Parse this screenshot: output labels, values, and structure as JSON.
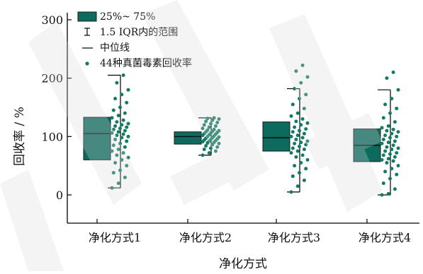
{
  "colors": {
    "box_fill": "#0d6b5e",
    "box_stroke": "#1a1a1a",
    "point": "#137a64",
    "axis": "#000000",
    "watermark": "#d9d9d9"
  },
  "chart_data": {
    "type": "box",
    "xlabel": "净化方式",
    "ylabel": "回收率 / %",
    "ylim": [
      -20,
      300
    ],
    "yticks": [
      0,
      100,
      200,
      300
    ],
    "categories": [
      "净化方式1",
      "净化方式2",
      "净化方式3",
      "净化方式4"
    ],
    "legend": {
      "position": "top-left",
      "entries": [
        {
          "kind": "box",
          "label": "25%~ 75%"
        },
        {
          "kind": "whisker",
          "label": "1.5 IQR内的范围"
        },
        {
          "kind": "median",
          "label": "中位线"
        },
        {
          "kind": "point",
          "label": "44种真菌毒素回收率"
        }
      ]
    },
    "boxes": [
      {
        "q1": 60,
        "median": 105,
        "q3": 133,
        "whisker_low": 12,
        "whisker_high": 205
      },
      {
        "q1": 87,
        "median": 100,
        "q3": 108,
        "whisker_low": 68,
        "whisker_high": 132
      },
      {
        "q1": 75,
        "median": 98,
        "q3": 125,
        "whisker_low": 5,
        "whisker_high": 182
      },
      {
        "q1": 57,
        "median": 85,
        "q3": 113,
        "whisker_low": 0,
        "whisker_high": 180
      }
    ],
    "points": [
      [
        12,
        20,
        30,
        38,
        42,
        50,
        55,
        60,
        64,
        68,
        72,
        75,
        78,
        82,
        85,
        88,
        92,
        95,
        98,
        100,
        102,
        104,
        106,
        108,
        110,
        112,
        114,
        116,
        118,
        120,
        122,
        125,
        128,
        132,
        136,
        140,
        145,
        150,
        158,
        165,
        172,
        180,
        192,
        205
      ],
      [
        68,
        72,
        75,
        78,
        80,
        82,
        84,
        86,
        88,
        89,
        90,
        91,
        92,
        93,
        94,
        95,
        96,
        97,
        98,
        99,
        100,
        101,
        102,
        103,
        104,
        105,
        106,
        107,
        108,
        109,
        110,
        111,
        112,
        114,
        116,
        118,
        120,
        122,
        124,
        126,
        128,
        130,
        131,
        132
      ],
      [
        5,
        15,
        25,
        32,
        38,
        45,
        50,
        55,
        60,
        65,
        68,
        72,
        75,
        78,
        80,
        83,
        86,
        88,
        90,
        92,
        95,
        98,
        100,
        102,
        105,
        108,
        110,
        113,
        116,
        120,
        123,
        126,
        130,
        135,
        140,
        148,
        155,
        165,
        172,
        182,
        192,
        202,
        212,
        222
      ],
      [
        0,
        2,
        10,
        20,
        28,
        35,
        40,
        45,
        50,
        55,
        58,
        60,
        62,
        65,
        68,
        70,
        72,
        75,
        78,
        80,
        82,
        85,
        88,
        90,
        92,
        95,
        98,
        100,
        102,
        105,
        108,
        110,
        112,
        115,
        118,
        125,
        132,
        140,
        148,
        155,
        165,
        180,
        200,
        210
      ]
    ]
  }
}
